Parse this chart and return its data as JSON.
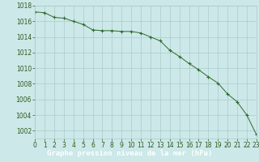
{
  "x": [
    0,
    1,
    2,
    3,
    4,
    5,
    6,
    7,
    8,
    9,
    10,
    11,
    12,
    13,
    14,
    15,
    16,
    17,
    18,
    19,
    20,
    21,
    22,
    23
  ],
  "y": [
    1017.2,
    1017.1,
    1016.5,
    1016.4,
    1016.0,
    1015.6,
    1014.9,
    1014.8,
    1014.8,
    1014.7,
    1014.7,
    1014.5,
    1014.0,
    1013.5,
    1012.3,
    1011.5,
    1010.6,
    1009.8,
    1008.9,
    1008.1,
    1006.7,
    1005.7,
    1004.0,
    1001.5
  ],
  "xlim": [
    0,
    23
  ],
  "ylim": [
    1001,
    1018
  ],
  "yticks": [
    1002,
    1004,
    1006,
    1008,
    1010,
    1012,
    1014,
    1016,
    1018
  ],
  "xticks": [
    0,
    1,
    2,
    3,
    4,
    5,
    6,
    7,
    8,
    9,
    10,
    11,
    12,
    13,
    14,
    15,
    16,
    17,
    18,
    19,
    20,
    21,
    22,
    23
  ],
  "line_color": "#2d6a2d",
  "marker_color": "#2d6a2d",
  "bg_color": "#cce8e8",
  "grid_color": "#aacccc",
  "xlabel": "Graphe pression niveau de la mer (hPa)",
  "xlabel_color": "#ffffff",
  "xlabel_bg": "#2d5a1e",
  "tick_color": "#2d5a1e",
  "tick_fontsize": 5.5,
  "label_fontsize": 6.5
}
